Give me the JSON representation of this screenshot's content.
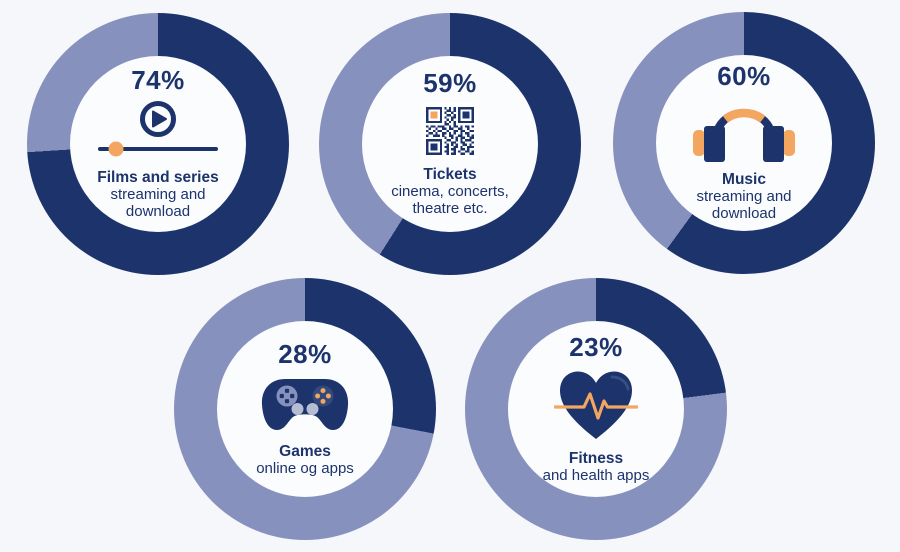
{
  "colors": {
    "navy": "#1c336c",
    "lavender": "#8791bd",
    "orange": "#f2a65f",
    "background": "#f6f7fb",
    "donut_hole": "#fbfcfe",
    "stick_gray": "#b6bcd1",
    "button_circle": "#33497c"
  },
  "donuts": [
    {
      "id": "films",
      "percent": 74,
      "percent_label": "74%",
      "title": "Films and series",
      "subtitle": "streaming and download",
      "icon": "video-player-icon"
    },
    {
      "id": "tickets",
      "percent": 59,
      "percent_label": "59%",
      "title": "Tickets",
      "subtitle": "cinema, concerts, theatre etc.",
      "icon": "qr-code-icon"
    },
    {
      "id": "music",
      "percent": 60,
      "percent_label": "60%",
      "title": "Music",
      "subtitle": "streaming and download",
      "icon": "headphones-icon"
    },
    {
      "id": "games",
      "percent": 28,
      "percent_label": "28%",
      "title": "Games",
      "subtitle": "online og apps",
      "icon": "gamepad-icon"
    },
    {
      "id": "fitness",
      "percent": 23,
      "percent_label": "23%",
      "title": "Fitness",
      "subtitle": "and health apps",
      "icon": "heart-pulse-icon"
    }
  ],
  "chart_data": [
    {
      "type": "pie",
      "variant": "donut",
      "title": "Films and series",
      "subtitle": "streaming and download",
      "center_label": "74%",
      "segments": [
        {
          "label": "Films and series",
          "value": 74,
          "color": "#1c336c"
        },
        {
          "label": "remainder",
          "value": 26,
          "color": "#8791bd"
        }
      ],
      "start_angle_deg": 0,
      "direction": "clockwise",
      "units": "%"
    },
    {
      "type": "pie",
      "variant": "donut",
      "title": "Tickets",
      "subtitle": "cinema, concerts, theatre etc.",
      "center_label": "59%",
      "segments": [
        {
          "label": "Tickets",
          "value": 59,
          "color": "#1c336c"
        },
        {
          "label": "remainder",
          "value": 41,
          "color": "#8791bd"
        }
      ],
      "start_angle_deg": 0,
      "direction": "clockwise",
      "units": "%"
    },
    {
      "type": "pie",
      "variant": "donut",
      "title": "Music",
      "subtitle": "streaming and download",
      "center_label": "60%",
      "segments": [
        {
          "label": "Music",
          "value": 60,
          "color": "#1c336c"
        },
        {
          "label": "remainder",
          "value": 40,
          "color": "#8791bd"
        }
      ],
      "start_angle_deg": 0,
      "direction": "clockwise",
      "units": "%"
    },
    {
      "type": "pie",
      "variant": "donut",
      "title": "Games",
      "subtitle": "online og apps",
      "center_label": "28%",
      "segments": [
        {
          "label": "Games",
          "value": 28,
          "color": "#1c336c"
        },
        {
          "label": "remainder",
          "value": 72,
          "color": "#8791bd"
        }
      ],
      "start_angle_deg": 0,
      "direction": "clockwise",
      "units": "%"
    },
    {
      "type": "pie",
      "variant": "donut",
      "title": "Fitness",
      "subtitle": "and health apps",
      "center_label": "23%",
      "segments": [
        {
          "label": "Fitness",
          "value": 23,
          "color": "#1c336c"
        },
        {
          "label": "remainder",
          "value": 77,
          "color": "#8791bd"
        }
      ],
      "start_angle_deg": 0,
      "direction": "clockwise",
      "units": "%"
    }
  ]
}
